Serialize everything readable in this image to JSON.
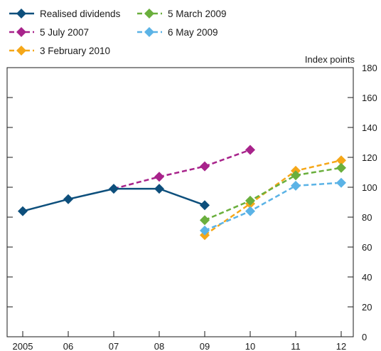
{
  "chart_data": {
    "type": "line",
    "x": [
      "2005",
      "06",
      "07",
      "08",
      "09",
      "10",
      "11",
      "12"
    ],
    "ylabel": "Index points",
    "ylim": [
      0,
      180
    ],
    "yticks": [
      0,
      20,
      40,
      60,
      80,
      100,
      120,
      140,
      160,
      180
    ],
    "grid": false,
    "legend_position": "top-left",
    "series": [
      {
        "name": "Realised dividends",
        "color": "#0d4f7c",
        "dashed": false,
        "values": [
          84,
          92,
          99,
          99,
          88,
          null,
          null,
          null
        ]
      },
      {
        "name": "5 July 2007",
        "color": "#a8238b",
        "dashed": true,
        "values": [
          null,
          null,
          99,
          107,
          114,
          125,
          null,
          null
        ]
      },
      {
        "name": "3 February 2010",
        "color": "#f5a718",
        "dashed": true,
        "values": [
          null,
          null,
          null,
          null,
          68,
          89,
          111,
          118
        ]
      },
      {
        "name": "5 March 2009",
        "color": "#6aaf3d",
        "dashed": true,
        "values": [
          null,
          null,
          null,
          null,
          78,
          91,
          108,
          113
        ]
      },
      {
        "name": "6 May 2009",
        "color": "#5bb3e6",
        "dashed": true,
        "values": [
          null,
          null,
          null,
          null,
          71,
          84,
          101,
          103
        ]
      }
    ]
  }
}
